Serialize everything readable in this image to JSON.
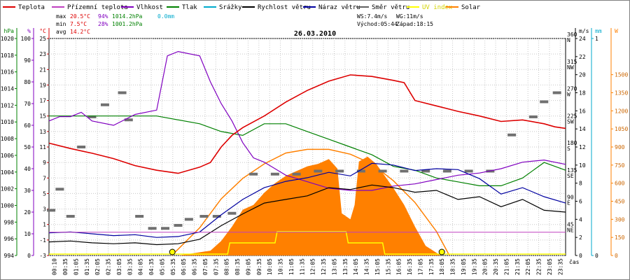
{
  "chart_data": {
    "type": "line",
    "title": "26.03.2010",
    "xlabel": "čas",
    "legend": [
      {
        "name": "Teplota",
        "color": "#dd0000"
      },
      {
        "name": "Přízemní teplota",
        "color": "#c040c0"
      },
      {
        "name": "Vlhkost",
        "color": "#8000c0"
      },
      {
        "name": "Tlak",
        "color": "#008000"
      },
      {
        "name": "Srážky",
        "color": "#00aacc"
      },
      {
        "name": "Rychlost větru",
        "color": "#000000"
      },
      {
        "name": "Náraz větru",
        "color": "#0000a0"
      },
      {
        "name": "Směr větru",
        "color": "#606060"
      },
      {
        "name": "UV index",
        "color": "#ffff00"
      },
      {
        "name": "Solar",
        "color": "#ff8000"
      }
    ],
    "stats": {
      "max_label": "max",
      "min_label": "min",
      "avg_label": "avg",
      "max_temp": "20.5°C",
      "max_hum": "94%",
      "max_press": "1014.2hPa",
      "max_rain": "0.0mm",
      "min_temp": "7.5°C",
      "min_hum": "28%",
      "min_press": "1001.2hPa",
      "avg_temp": "14.2°C",
      "ws": "WS:7.4m/s",
      "wg": "WG:11m/s",
      "sunrise": "Východ:05:44",
      "sunset": "Západ:18:15"
    },
    "axis_units": {
      "hpa": "hPa",
      "pct": "%",
      "degc": "°C",
      "ms": "m/s",
      "mm": "mm",
      "w": "W"
    },
    "axes": {
      "hpa": {
        "range": [
          994,
          1022
        ],
        "ticks": [
          "994",
          "996",
          "998",
          "1000",
          "1002",
          "1004",
          "1006",
          "1008",
          "1010",
          "1012",
          "1014",
          "1016",
          "1018",
          "1020"
        ]
      },
      "pct": {
        "range": [
          0,
          100
        ],
        "ticks": [
          "0",
          "10",
          "20",
          "30",
          "40",
          "50",
          "60",
          "70",
          "80",
          "90",
          "100"
        ]
      },
      "degc": {
        "range": [
          -3,
          25
        ],
        "ticks": [
          "-3",
          "-1",
          "1",
          "3",
          "5",
          "7",
          "9",
          "11",
          "13",
          "15",
          "17",
          "19",
          "21",
          "23",
          "25"
        ]
      },
      "ms": {
        "range": [
          0,
          24
        ],
        "ticks": [
          "0",
          "2",
          "4",
          "6",
          "8",
          "10",
          "12",
          "14",
          "16",
          "18",
          "20",
          "22",
          "24"
        ]
      },
      "dir": {
        "range": [
          0,
          360
        ],
        "ticks": [
          {
            "v": 45,
            "l": "45",
            "c": "NE"
          },
          {
            "v": 90,
            "l": "90",
            "c": "E"
          },
          {
            "v": 135,
            "l": "135",
            "c": "SE"
          },
          {
            "v": 180,
            "l": "180",
            "c": "S"
          },
          {
            "v": 225,
            "l": "225",
            "c": "SW"
          },
          {
            "v": 270,
            "l": "270",
            "c": "W"
          },
          {
            "v": 315,
            "l": "315",
            "c": "NW"
          },
          {
            "v": 360,
            "l": "360",
            "c": "N"
          }
        ]
      },
      "mm": {
        "range": [
          0,
          1
        ],
        "ticks": [
          "0",
          "1"
        ]
      },
      "w": {
        "range": [
          0,
          1800
        ],
        "ticks": [
          "0",
          "150",
          "300",
          "450",
          "600",
          "750",
          "900",
          "1050",
          "1200",
          "1350",
          "1500"
        ]
      }
    },
    "x_ticks": [
      "00:10",
      "00:35",
      "01:05",
      "01:35",
      "02:05",
      "02:35",
      "03:05",
      "03:35",
      "04:05",
      "04:35",
      "05:05",
      "05:35",
      "06:05",
      "06:35",
      "07:05",
      "07:35",
      "08:05",
      "08:35",
      "09:05",
      "09:35",
      "10:05",
      "10:35",
      "11:05",
      "11:35",
      "12:05",
      "12:35",
      "13:05",
      "13:35",
      "14:05",
      "14:35",
      "15:05",
      "15:35",
      "16:05",
      "16:35",
      "17:05",
      "17:35",
      "18:05",
      "18:35",
      "19:05",
      "19:35",
      "20:05",
      "20:35",
      "21:05",
      "21:35",
      "22:05",
      "22:35",
      "23:05",
      "23:35"
    ],
    "x_range_hours": [
      0,
      24
    ],
    "series": {
      "temperature": [
        [
          0,
          11.5
        ],
        [
          1,
          10.8
        ],
        [
          2,
          10.2
        ],
        [
          3,
          9.5
        ],
        [
          4,
          8.6
        ],
        [
          5,
          8.0
        ],
        [
          6,
          7.6
        ],
        [
          7,
          8.4
        ],
        [
          7.5,
          9.0
        ],
        [
          8,
          11
        ],
        [
          8.5,
          12.5
        ],
        [
          9,
          13.5
        ],
        [
          10,
          15
        ],
        [
          11,
          16.8
        ],
        [
          12,
          18.3
        ],
        [
          13,
          19.5
        ],
        [
          14,
          20.3
        ],
        [
          15,
          20.1
        ],
        [
          16,
          19.6
        ],
        [
          16.5,
          19.3
        ],
        [
          17,
          17
        ],
        [
          18,
          16.3
        ],
        [
          19,
          15.6
        ],
        [
          20,
          15.0
        ],
        [
          21,
          14.3
        ],
        [
          22,
          14.5
        ],
        [
          23,
          14.0
        ],
        [
          23.5,
          13.6
        ],
        [
          24,
          13.4
        ]
      ],
      "humidity": [
        [
          0,
          62
        ],
        [
          0.5,
          64
        ],
        [
          1,
          64
        ],
        [
          1.5,
          66
        ],
        [
          2,
          62
        ],
        [
          3,
          60
        ],
        [
          4,
          65
        ],
        [
          5,
          67
        ],
        [
          5.5,
          92
        ],
        [
          6,
          94
        ],
        [
          7,
          92
        ],
        [
          7.5,
          80
        ],
        [
          8,
          70
        ],
        [
          8.5,
          62
        ],
        [
          9,
          52
        ],
        [
          9.5,
          45
        ],
        [
          10,
          43
        ],
        [
          10.5,
          40
        ],
        [
          11,
          37
        ],
        [
          12,
          34
        ],
        [
          13,
          31
        ],
        [
          14,
          30
        ],
        [
          15,
          30
        ],
        [
          16,
          32
        ],
        [
          17,
          33
        ],
        [
          18,
          35
        ],
        [
          19,
          37
        ],
        [
          20,
          38
        ],
        [
          21,
          40
        ],
        [
          22,
          43
        ],
        [
          23,
          44
        ],
        [
          24,
          42
        ]
      ],
      "pressure": [
        [
          0,
          1012
        ],
        [
          5,
          1012
        ],
        [
          7,
          1011
        ],
        [
          8,
          1010
        ],
        [
          9,
          1009.5
        ],
        [
          10,
          1011
        ],
        [
          11,
          1011
        ],
        [
          12,
          1010
        ],
        [
          13,
          1009
        ],
        [
          14,
          1008
        ],
        [
          15,
          1007
        ],
        [
          16,
          1005.5
        ],
        [
          17,
          1005
        ],
        [
          18,
          1004
        ],
        [
          19,
          1003.5
        ],
        [
          20,
          1003
        ],
        [
          21,
          1003
        ],
        [
          22,
          1004
        ],
        [
          22.5,
          1005
        ],
        [
          23,
          1006
        ],
        [
          24,
          1005
        ]
      ],
      "wind_speed": [
        [
          0,
          1.5
        ],
        [
          1,
          1.6
        ],
        [
          2,
          1.4
        ],
        [
          3,
          1.3
        ],
        [
          4,
          1.4
        ],
        [
          5,
          1.2
        ],
        [
          6,
          1.3
        ],
        [
          7,
          1.8
        ],
        [
          8,
          3.3
        ],
        [
          9,
          4.6
        ],
        [
          10,
          5.8
        ],
        [
          11,
          6.2
        ],
        [
          12,
          6.6
        ],
        [
          13,
          7.5
        ],
        [
          14,
          7.3
        ],
        [
          15,
          7.8
        ],
        [
          16,
          7.5
        ],
        [
          17,
          7.0
        ],
        [
          18,
          7.2
        ],
        [
          19,
          6.2
        ],
        [
          20,
          6.5
        ],
        [
          21,
          5.4
        ],
        [
          22,
          6.2
        ],
        [
          23,
          5.0
        ],
        [
          24,
          4.8
        ]
      ],
      "wind_gust": [
        [
          0,
          2.5
        ],
        [
          1,
          2.6
        ],
        [
          2,
          2.4
        ],
        [
          3,
          2.2
        ],
        [
          4,
          2.3
        ],
        [
          5,
          2.0
        ],
        [
          6,
          2.1
        ],
        [
          7,
          2.6
        ],
        [
          8,
          4.5
        ],
        [
          9,
          6.2
        ],
        [
          10,
          7.5
        ],
        [
          11,
          8.2
        ],
        [
          12,
          8.6
        ],
        [
          13,
          9.2
        ],
        [
          14,
          8.8
        ],
        [
          15,
          10.2
        ],
        [
          16,
          10.0
        ],
        [
          17,
          9.4
        ],
        [
          18,
          9.6
        ],
        [
          19,
          9.5
        ],
        [
          20,
          8.5
        ],
        [
          21,
          6.8
        ],
        [
          22,
          7.5
        ],
        [
          23,
          6.5
        ],
        [
          24,
          5.8
        ]
      ],
      "wind_dir_samples": [
        [
          0.1,
          75
        ],
        [
          0.5,
          110
        ],
        [
          1,
          65
        ],
        [
          1.5,
          180
        ],
        [
          2,
          230
        ],
        [
          2.6,
          250
        ],
        [
          3.4,
          270
        ],
        [
          3.7,
          225
        ],
        [
          4.2,
          65
        ],
        [
          4.8,
          45
        ],
        [
          5.4,
          45
        ],
        [
          6.0,
          50
        ],
        [
          6.5,
          60
        ],
        [
          7.2,
          65
        ],
        [
          7.8,
          65
        ],
        [
          8.5,
          70
        ],
        [
          9.5,
          135
        ],
        [
          10.5,
          135
        ],
        [
          11.5,
          135
        ],
        [
          12.5,
          140
        ],
        [
          13.5,
          140
        ],
        [
          14.5,
          140
        ],
        [
          15.5,
          140
        ],
        [
          16.5,
          140
        ],
        [
          17.5,
          140
        ],
        [
          18.5,
          140
        ],
        [
          19.5,
          140
        ],
        [
          20.5,
          140
        ],
        [
          21.5,
          200
        ],
        [
          22.5,
          230
        ],
        [
          23.0,
          255
        ],
        [
          23.6,
          270
        ]
      ],
      "solar": [
        [
          6.0,
          0
        ],
        [
          7.5,
          40
        ],
        [
          8.0,
          120
        ],
        [
          8.5,
          240
        ],
        [
          9.0,
          380
        ],
        [
          9.5,
          420
        ],
        [
          10.0,
          520
        ],
        [
          10.5,
          600
        ],
        [
          11.0,
          660
        ],
        [
          11.5,
          700
        ],
        [
          12.0,
          740
        ],
        [
          12.5,
          760
        ],
        [
          13.0,
          800
        ],
        [
          13.4,
          720
        ],
        [
          13.6,
          350
        ],
        [
          14.0,
          300
        ],
        [
          14.2,
          420
        ],
        [
          14.4,
          780
        ],
        [
          14.8,
          820
        ],
        [
          15.2,
          760
        ],
        [
          15.6,
          660
        ],
        [
          16.0,
          560
        ],
        [
          16.5,
          420
        ],
        [
          17.0,
          240
        ],
        [
          17.5,
          80
        ],
        [
          18.2,
          0
        ]
      ],
      "solar_clear_sky": [
        [
          5.7,
          0
        ],
        [
          7,
          230
        ],
        [
          8,
          470
        ],
        [
          9,
          640
        ],
        [
          10,
          760
        ],
        [
          11,
          850
        ],
        [
          12,
          880
        ],
        [
          13,
          880
        ],
        [
          14,
          840
        ],
        [
          15,
          760
        ],
        [
          16,
          620
        ],
        [
          17,
          440
        ],
        [
          18,
          200
        ],
        [
          18.6,
          0
        ]
      ],
      "uv_index": [
        [
          0,
          0
        ],
        [
          8.3,
          0
        ],
        [
          8.4,
          1
        ],
        [
          10.5,
          1
        ],
        [
          10.6,
          2
        ],
        [
          13.8,
          2
        ],
        [
          13.9,
          1
        ],
        [
          15.5,
          1
        ],
        [
          15.6,
          0
        ],
        [
          24,
          0
        ]
      ]
    }
  }
}
